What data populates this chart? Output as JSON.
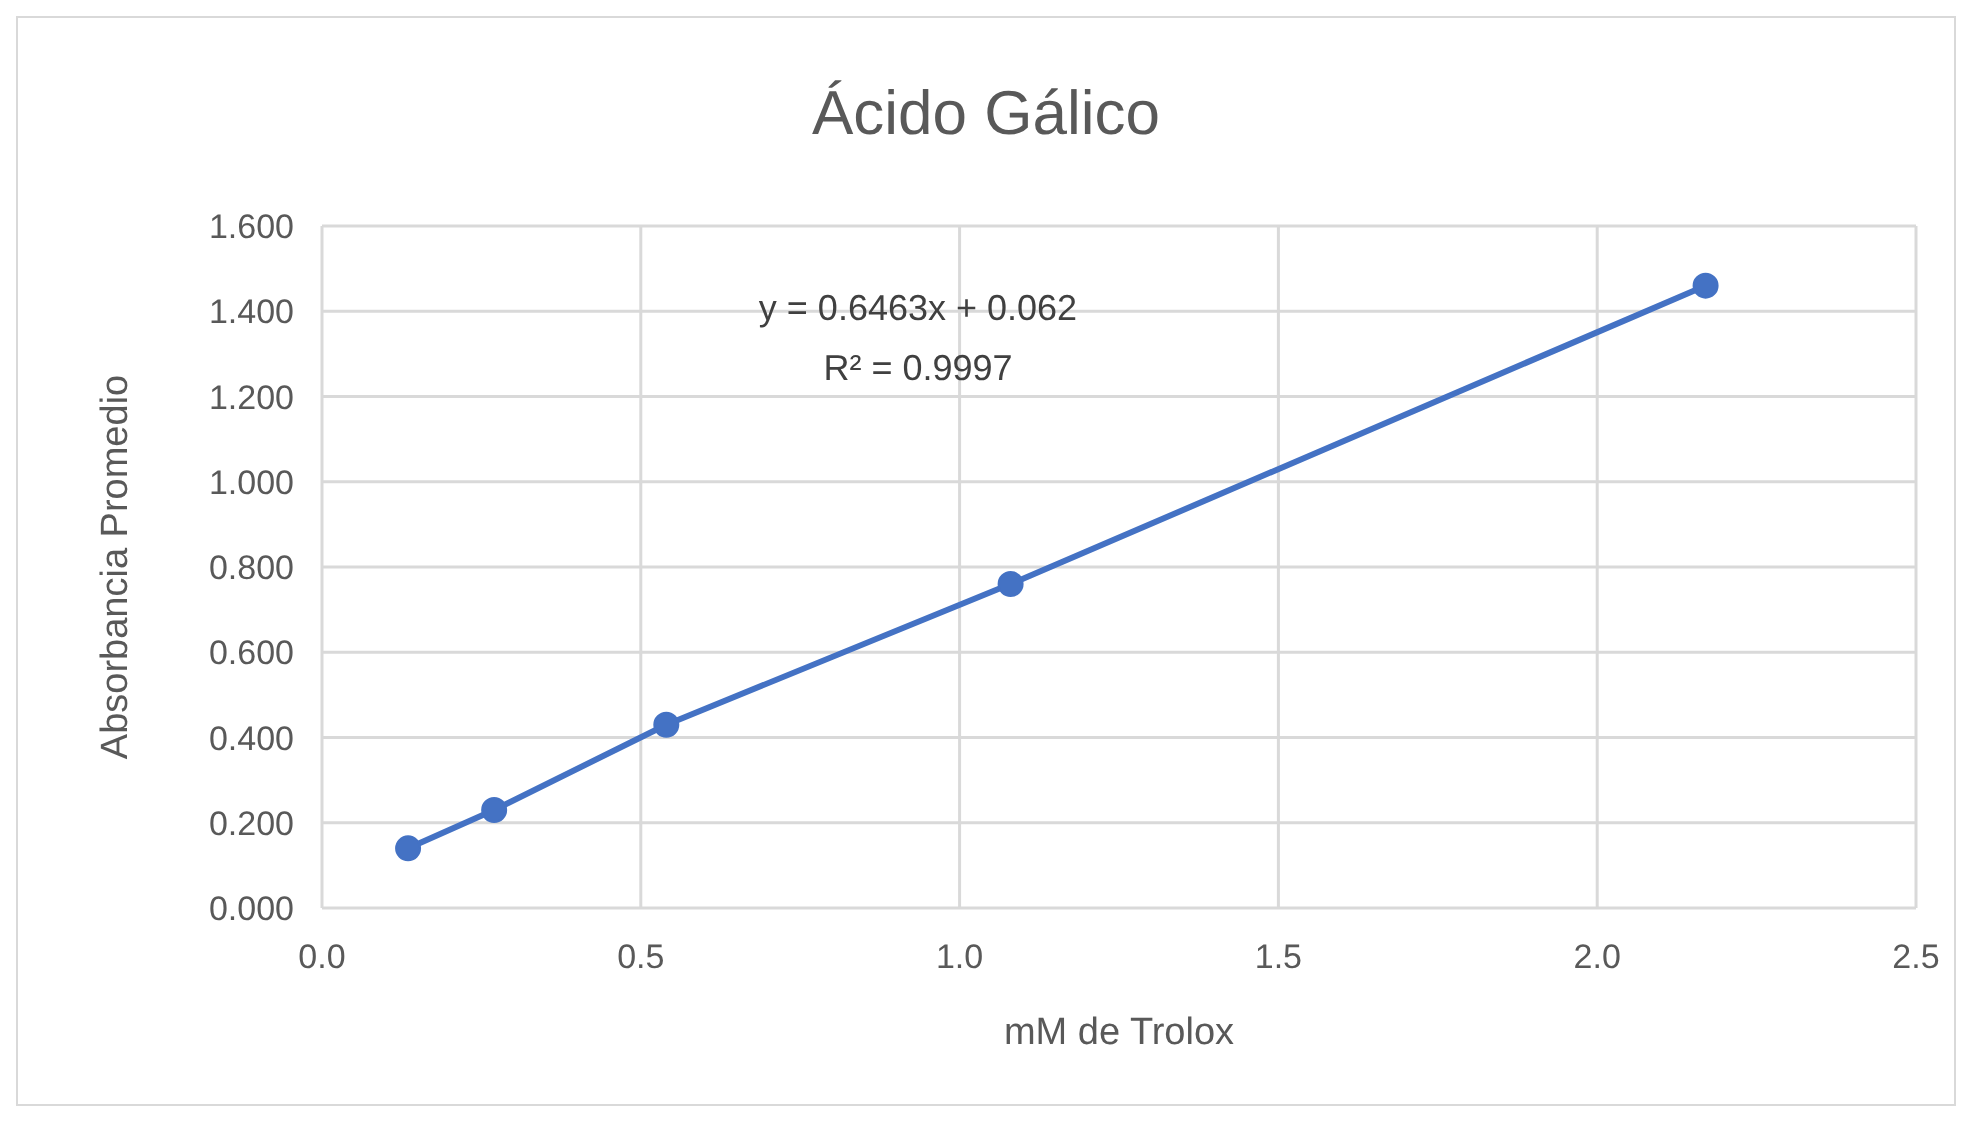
{
  "chart_data": {
    "type": "line",
    "title": "Ácido Gálico",
    "xlabel": "mM de Trolox",
    "ylabel": "Absorbancia Promedio",
    "x": [
      0.135,
      0.27,
      0.54,
      1.08,
      2.17
    ],
    "series": [
      {
        "color": "#4472c4",
        "values": [
          0.14,
          0.23,
          0.43,
          0.76,
          1.46
        ]
      }
    ],
    "xlim": [
      0,
      2.5
    ],
    "xticks": [
      {
        "value": 0,
        "label": "0.0"
      },
      0.5,
      {
        "value": 1,
        "label": "1.0"
      },
      1.5,
      {
        "value": 2,
        "label": "2.0"
      },
      2.5
    ],
    "ylim": [
      0,
      1.6
    ],
    "yticks": [
      {
        "value": 0,
        "label": "0.000"
      },
      {
        "value": 0.2,
        "label": "0.200"
      },
      {
        "value": 0.4,
        "label": "0.400"
      },
      {
        "value": 0.6,
        "label": "0.600"
      },
      {
        "value": 0.8,
        "label": "0.800"
      },
      {
        "value": 1,
        "label": "1.000"
      },
      {
        "value": 1.2,
        "label": "1.200"
      },
      {
        "value": 1.4,
        "label": "1.400"
      },
      {
        "value": 1.6,
        "label": "1.600"
      }
    ],
    "grid": true,
    "marker": "circle",
    "line_style": "solid",
    "legend": false,
    "annotations": [
      "y = 0.6463x + 0.062",
      "R² = 0.9997"
    ]
  }
}
